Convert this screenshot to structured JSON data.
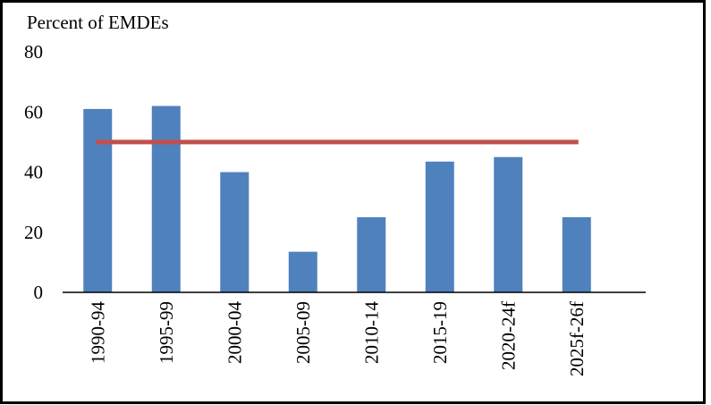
{
  "chart_data": {
    "type": "bar",
    "title": "Percent of EMDEs",
    "categories": [
      "1990-94",
      "1995-99",
      "2000-04",
      "2005-09",
      "2010-14",
      "2015-19",
      "2020-24f",
      "2025f-26f"
    ],
    "values": [
      61,
      62,
      40,
      13.5,
      25,
      43.5,
      45,
      25
    ],
    "color": "#4f81bd",
    "reference_line": {
      "value": 50,
      "color": "#c0504d"
    },
    "ylim": [
      0,
      80
    ],
    "yticks": [
      0,
      20,
      40,
      60,
      80
    ],
    "grid": false
  }
}
